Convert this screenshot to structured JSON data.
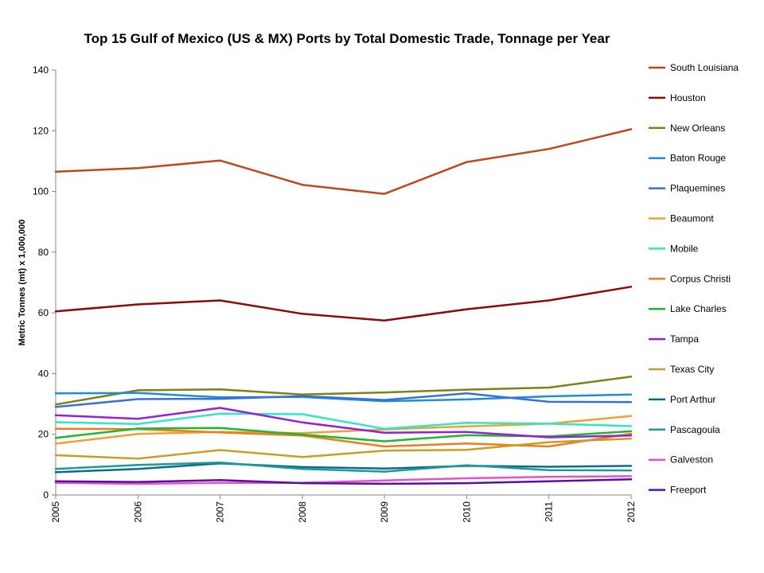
{
  "chart_data": {
    "type": "line",
    "title": "Top 15 Gulf of Mexico (US & MX) Ports by Total Domestic Trade, Tonnage per Year",
    "xlabel": "",
    "ylabel": "Metric Tonnes (mt) x 1,000,000",
    "x": [
      "2005",
      "2006",
      "2007",
      "2008",
      "2009",
      "2010",
      "2011",
      "2012"
    ],
    "ylim": [
      0,
      140
    ],
    "yticks": [
      "0",
      "20",
      "40",
      "60",
      "80",
      "100",
      "120",
      "140"
    ],
    "grid": false,
    "legend_position": "right",
    "series": [
      {
        "name": "South Louisiana",
        "color": "#C0471A",
        "values": [
          106.5,
          107.7,
          110.2,
          102.2,
          99.2,
          109.7,
          114,
          120.5
        ]
      },
      {
        "name": "Houston",
        "color": "#8B0A0A",
        "values": [
          60.5,
          62.8,
          64.1,
          59.7,
          57.5,
          61.2,
          64.1,
          68.6
        ]
      },
      {
        "name": "New Orleans",
        "color": "#7F8016",
        "values": [
          29.8,
          34.5,
          34.8,
          33.1,
          33.8,
          34.7,
          35.4,
          39.0
        ]
      },
      {
        "name": "Baton Rouge",
        "color": "#1A8FD8",
        "values": [
          33.5,
          33.6,
          32.2,
          32.3,
          30.9,
          31.5,
          32.5,
          33.1
        ]
      },
      {
        "name": "Plaquemines",
        "color": "#3A6FD8",
        "values": [
          29.0,
          31.6,
          31.7,
          32.6,
          31.3,
          33.5,
          30.7,
          30.6
        ]
      },
      {
        "name": "Beaumont",
        "color": "#F0A030",
        "values": [
          16.9,
          20.1,
          20.8,
          20.4,
          21.6,
          22.6,
          23.5,
          26.0
        ]
      },
      {
        "name": "Mobile",
        "color": "#2EE8C8",
        "values": [
          24.0,
          23.4,
          26.8,
          26.6,
          21.8,
          23.8,
          23.5,
          22.7
        ]
      },
      {
        "name": "Corpus Christi",
        "color": "#F07A20",
        "values": [
          21.8,
          21.7,
          20.6,
          19.6,
          16.0,
          17.0,
          16.0,
          20.2
        ]
      },
      {
        "name": "Lake Charles",
        "color": "#1EB82E",
        "values": [
          18.8,
          21.9,
          22.1,
          19.9,
          17.7,
          19.7,
          19.3,
          21.0
        ]
      },
      {
        "name": "Tampa",
        "color": "#9A1ED8",
        "values": [
          26.3,
          25.1,
          28.7,
          23.9,
          20.5,
          20.8,
          19.0,
          19.6
        ]
      },
      {
        "name": "Texas City",
        "color": "#C8A020",
        "values": [
          13.1,
          12.0,
          14.8,
          12.5,
          14.6,
          14.9,
          17.4,
          18.6
        ]
      },
      {
        "name": "Port Arthur",
        "color": "#0C6A8A",
        "values": [
          7.5,
          8.6,
          10.4,
          9.2,
          8.7,
          9.6,
          9.3,
          9.6
        ]
      },
      {
        "name": "Pascagoula",
        "color": "#1A9A9A",
        "values": [
          8.6,
          9.9,
          10.7,
          8.6,
          7.7,
          9.8,
          8.2,
          8.1
        ]
      },
      {
        "name": "Galveston",
        "color": "#E850C8",
        "values": [
          4.0,
          3.7,
          4.0,
          4.0,
          4.8,
          5.5,
          6.0,
          6.2
        ]
      },
      {
        "name": "Freeport",
        "color": "#5A0EA8",
        "values": [
          4.5,
          4.3,
          4.9,
          3.9,
          3.7,
          3.9,
          4.5,
          5.2
        ]
      }
    ]
  }
}
